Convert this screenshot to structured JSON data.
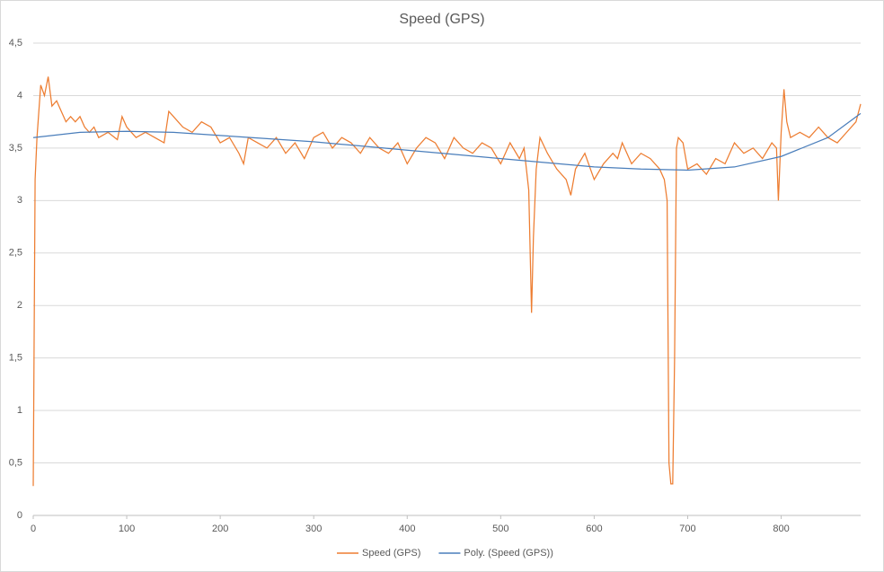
{
  "chart_data": {
    "type": "line",
    "title": "Speed (GPS)",
    "xlim": [
      0,
      885
    ],
    "xticks": [
      0,
      100,
      200,
      300,
      400,
      500,
      600,
      700,
      800
    ],
    "ylim": [
      0,
      4.5
    ],
    "yticks": [
      0,
      {
        "value": 0.5,
        "label": "0,5"
      },
      1,
      {
        "value": 1.5,
        "label": "1,5"
      },
      2,
      {
        "value": 2.5,
        "label": "2,5"
      },
      3,
      {
        "value": 3.5,
        "label": "3,5"
      },
      4,
      {
        "value": 4.5,
        "label": "4,5"
      }
    ],
    "grid": true,
    "legend": "bottom",
    "series": [
      {
        "name": "Speed (GPS)",
        "color": "#ed7d31",
        "x": [
          0,
          2,
          4,
          8,
          12,
          16,
          20,
          25,
          30,
          35,
          40,
          45,
          50,
          55,
          60,
          65,
          70,
          80,
          90,
          95,
          100,
          110,
          120,
          130,
          140,
          145,
          150,
          160,
          170,
          180,
          190,
          200,
          210,
          220,
          225,
          230,
          240,
          250,
          260,
          270,
          280,
          290,
          300,
          310,
          320,
          330,
          340,
          350,
          360,
          370,
          380,
          390,
          400,
          410,
          420,
          430,
          440,
          450,
          460,
          470,
          480,
          490,
          500,
          510,
          520,
          525,
          530,
          533,
          535,
          538,
          542,
          550,
          560,
          570,
          575,
          580,
          590,
          600,
          610,
          620,
          625,
          630,
          640,
          650,
          660,
          670,
          675,
          678,
          680,
          682,
          684,
          686,
          688,
          690,
          695,
          700,
          710,
          720,
          730,
          740,
          750,
          760,
          770,
          780,
          790,
          795,
          797,
          800,
          803,
          806,
          810,
          820,
          830,
          840,
          850,
          860,
          870,
          880,
          885
        ],
        "values": [
          0.28,
          3.2,
          3.6,
          4.1,
          4.0,
          4.18,
          3.9,
          3.95,
          3.85,
          3.75,
          3.8,
          3.75,
          3.8,
          3.7,
          3.65,
          3.7,
          3.6,
          3.65,
          3.58,
          3.8,
          3.7,
          3.6,
          3.65,
          3.6,
          3.55,
          3.85,
          3.8,
          3.7,
          3.65,
          3.75,
          3.7,
          3.55,
          3.6,
          3.45,
          3.35,
          3.6,
          3.55,
          3.5,
          3.6,
          3.45,
          3.55,
          3.4,
          3.6,
          3.65,
          3.5,
          3.6,
          3.55,
          3.45,
          3.6,
          3.5,
          3.45,
          3.55,
          3.35,
          3.5,
          3.6,
          3.55,
          3.4,
          3.6,
          3.5,
          3.45,
          3.55,
          3.5,
          3.35,
          3.55,
          3.4,
          3.5,
          3.1,
          1.93,
          2.65,
          3.3,
          3.6,
          3.45,
          3.3,
          3.2,
          3.05,
          3.3,
          3.45,
          3.2,
          3.35,
          3.45,
          3.4,
          3.55,
          3.35,
          3.45,
          3.4,
          3.3,
          3.2,
          3.0,
          0.5,
          0.3,
          0.3,
          1.5,
          3.5,
          3.6,
          3.55,
          3.3,
          3.35,
          3.25,
          3.4,
          3.35,
          3.55,
          3.45,
          3.5,
          3.4,
          3.55,
          3.5,
          3.0,
          3.65,
          4.06,
          3.75,
          3.6,
          3.65,
          3.6,
          3.7,
          3.6,
          3.55,
          3.65,
          3.75,
          3.92
        ]
      },
      {
        "name": "Poly. (Speed (GPS))",
        "color": "#4a7ebb",
        "x": [
          0,
          50,
          100,
          150,
          200,
          250,
          300,
          350,
          400,
          450,
          500,
          550,
          600,
          650,
          700,
          750,
          800,
          850,
          885
        ],
        "values": [
          3.6,
          3.65,
          3.66,
          3.65,
          3.62,
          3.59,
          3.56,
          3.52,
          3.48,
          3.44,
          3.4,
          3.36,
          3.32,
          3.3,
          3.29,
          3.32,
          3.42,
          3.6,
          3.83
        ]
      }
    ]
  }
}
